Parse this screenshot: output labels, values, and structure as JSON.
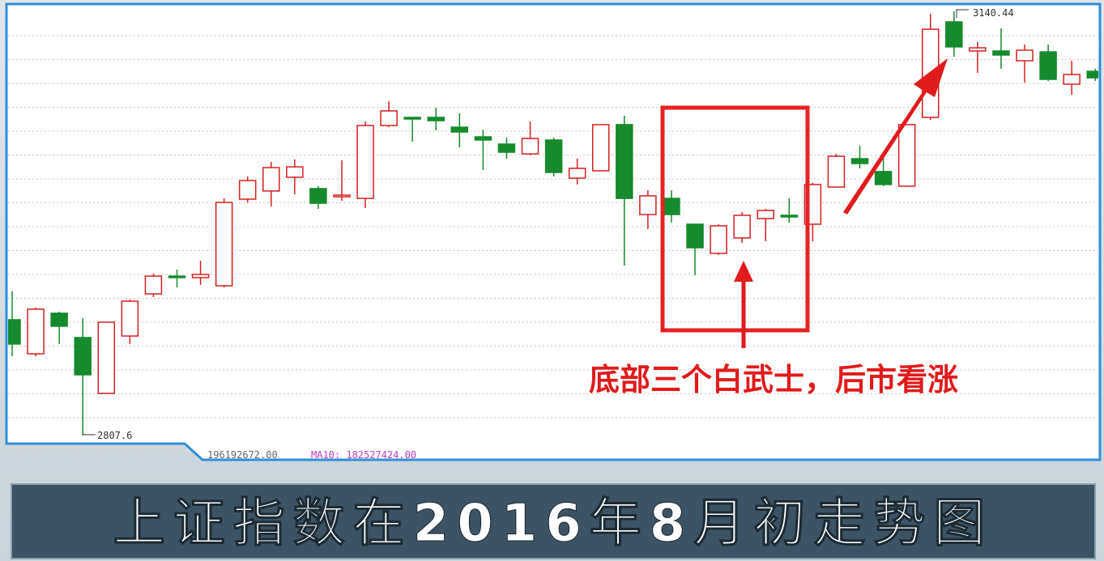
{
  "chart_data": {
    "type": "candlestick",
    "ylim": [
      2802.5,
      3146.2
    ],
    "up_color": "#d42020",
    "down_color": "#168a2c",
    "open": [
      2898.0,
      2871.2,
      2903.1,
      2884.0,
      2840.1,
      2885.2,
      2918.3,
      2932.3,
      2931.1,
      2924.7,
      2992.8,
      2999.2,
      3010.0,
      3001.1,
      2994.7,
      2993.4,
      3050.7,
      3057.1,
      3057.1,
      3049.4,
      3041.8,
      3036.1,
      3028.4,
      3039.3,
      3009.3,
      3015.1,
      3051.4,
      2980.7,
      2993.4,
      2973.1,
      2950.2,
      2962.3,
      2977.5,
      2980.1,
      2973.1,
      3002.3,
      3024.6,
      3014.5,
      3003.0,
      3057.1,
      3132.2,
      3109.3,
      3109.3,
      3101.6,
      3108.6,
      3083.2,
      3093.3
    ],
    "high": [
      2920.3,
      2907.5,
      2904.3,
      2899.2,
      2896.1,
      2913.9,
      2934.2,
      2937.4,
      2944.4,
      2993.4,
      3010.6,
      3022.1,
      3024.0,
      3003.0,
      3023.3,
      3053.9,
      3069.8,
      3057.1,
      3064.7,
      3060.3,
      3047.5,
      3041.2,
      3053.9,
      3041.2,
      3024.6,
      3051.4,
      3058.4,
      2999.8,
      2999.8,
      2973.1,
      2973.1,
      2982.6,
      2985.2,
      2993.4,
      3005.6,
      3028.4,
      3034.8,
      3025.3,
      3051.4,
      3138.5,
      3140.44,
      3116.3,
      3127.1,
      3114.4,
      3114.4,
      3101.6,
      3095.3
    ],
    "low": [
      2869.3,
      2869.3,
      2878.9,
      2807.6,
      2840.1,
      2878.9,
      2915.8,
      2923.4,
      2925.3,
      2923.4,
      2990.2,
      2987.1,
      2996.6,
      2985.2,
      2991.5,
      2985.8,
      3049.4,
      3038.0,
      3046.9,
      3033.5,
      3015.7,
      3024.6,
      3027.2,
      3010.6,
      3004.3,
      3015.1,
      2940.6,
      2969.3,
      2974.4,
      2933.0,
      2948.9,
      2958.5,
      2959.7,
      2974.4,
      2959.7,
      3001.7,
      3017.0,
      3003.0,
      3003.0,
      3055.2,
      3104.8,
      3092.1,
      3095.3,
      3084.5,
      3085.7,
      3074.9,
      3085.7
    ],
    "close": [
      2878.9,
      2906.3,
      2892.9,
      2854.7,
      2896.1,
      2912.6,
      2932.3,
      2931.1,
      2933.6,
      2990.2,
      3007.4,
      3017.6,
      3018.2,
      2989.6,
      2996.0,
      3050.7,
      3062.2,
      3055.8,
      3054.5,
      3045.6,
      3039.3,
      3029.7,
      3040.5,
      3013.8,
      3017.0,
      3051.4,
      2993.4,
      2995.4,
      2980.7,
      2954.6,
      2971.8,
      2980.1,
      2983.9,
      2978.8,
      3004.3,
      3026.5,
      3020.8,
      3004.3,
      3051.4,
      3126.4,
      3112.5,
      3111.8,
      3106.1,
      3109.9,
      3087.0,
      3090.8,
      3088.2
    ],
    "annotation": "底部三个白武士，后市看涨",
    "volume_text": "196192672.00",
    "ma10_text": "MA10: 182527424.00"
  },
  "caption": "上证指数在2016年8月初走势图"
}
